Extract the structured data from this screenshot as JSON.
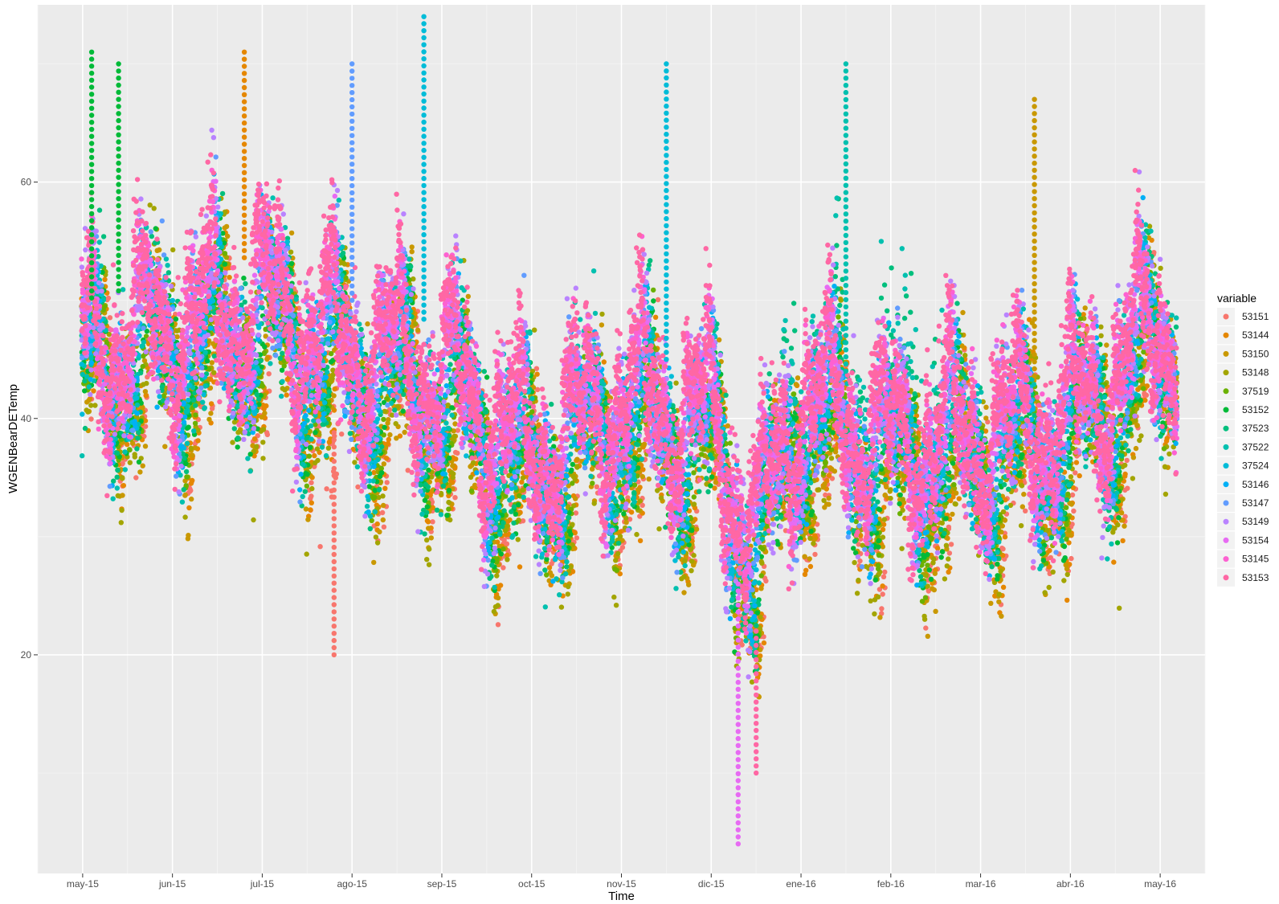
{
  "chart_data": {
    "type": "scatter",
    "xlabel": "Time",
    "ylabel": "WGENBearDETemp",
    "x_ticks": [
      "may-15",
      "jun-15",
      "jul-15",
      "ago-15",
      "sep-15",
      "oct-15",
      "nov-15",
      "dic-15",
      "ene-16",
      "feb-16",
      "mar-16",
      "abr-16",
      "may-16"
    ],
    "x_domain_months": [
      -0.5,
      12.5
    ],
    "x_data_range_months": [
      0,
      12.2
    ],
    "ylim": [
      1.5,
      75
    ],
    "y_ticks": [
      20,
      40,
      60
    ],
    "grid": true,
    "legend": {
      "title": "variable",
      "position": "right",
      "entries": [
        {
          "name": "53151",
          "color": "#F8766D"
        },
        {
          "name": "53144",
          "color": "#E58700"
        },
        {
          "name": "53150",
          "color": "#C99800"
        },
        {
          "name": "53148",
          "color": "#A3A500"
        },
        {
          "name": "37519",
          "color": "#6BB100"
        },
        {
          "name": "53152",
          "color": "#00BA38"
        },
        {
          "name": "37523",
          "color": "#00BF7D"
        },
        {
          "name": "37522",
          "color": "#00C0AF"
        },
        {
          "name": "37524",
          "color": "#00BCD8"
        },
        {
          "name": "53146",
          "color": "#00B0F6"
        },
        {
          "name": "53147",
          "color": "#619CFF"
        },
        {
          "name": "53149",
          "color": "#B983FF"
        },
        {
          "name": "53154",
          "color": "#E76BF3"
        },
        {
          "name": "53145",
          "color": "#FD61D1"
        },
        {
          "name": "53153",
          "color": "#FF67A4"
        }
      ]
    },
    "series_profile": {
      "note": "Approximate median daily temperature trend shared by all series (month index, value)",
      "trend": [
        [
          0,
          44
        ],
        [
          1,
          46
        ],
        [
          2,
          48
        ],
        [
          3,
          44
        ],
        [
          4,
          42
        ],
        [
          5,
          35
        ],
        [
          6,
          40
        ],
        [
          7,
          38
        ],
        [
          7.5,
          28
        ],
        [
          8,
          40
        ],
        [
          9,
          36
        ],
        [
          10,
          37
        ],
        [
          11,
          38
        ],
        [
          12,
          46
        ]
      ]
    },
    "series_spikes": [
      {
        "series": "53152",
        "month": 0.1,
        "max": 71
      },
      {
        "series": "53152",
        "month": 0.4,
        "max": 70
      },
      {
        "series": "53144",
        "month": 1.8,
        "max": 71
      },
      {
        "series": "53147",
        "month": 3.0,
        "max": 70
      },
      {
        "series": "37524",
        "month": 3.8,
        "max": 74
      },
      {
        "series": "37524",
        "month": 6.5,
        "max": 70
      },
      {
        "series": "37522",
        "month": 8.5,
        "max": 70
      },
      {
        "series": "53150",
        "month": 10.6,
        "max": 67
      },
      {
        "series": "53153",
        "month": 7.5,
        "min": 10
      },
      {
        "series": "53154",
        "month": 7.3,
        "min": 4
      },
      {
        "series": "53151",
        "month": 2.8,
        "min": 20
      }
    ]
  }
}
